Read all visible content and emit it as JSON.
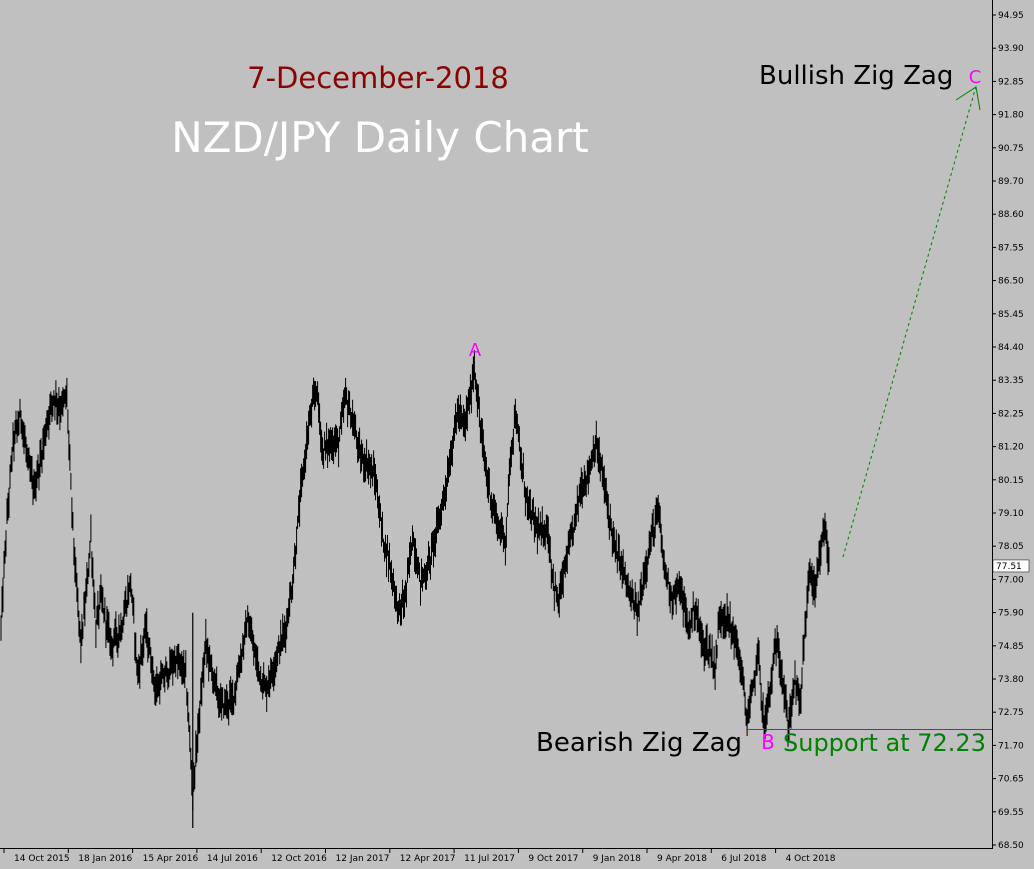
{
  "chart_data": {
    "type": "line",
    "style": "candlestick-like black price series on gray background",
    "instrument": "NZD/JPY",
    "date_text": "7-December-2018",
    "title": "NZD/JPY Daily Chart",
    "current_price": "77.51",
    "y_ticks": [
      "94.95",
      "93.90",
      "92.85",
      "91.80",
      "90.75",
      "89.70",
      "88.60",
      "87.55",
      "86.50",
      "85.45",
      "84.40",
      "83.35",
      "82.25",
      "81.20",
      "80.15",
      "79.10",
      "78.05",
      "77.00",
      "75.90",
      "74.85",
      "73.80",
      "72.75",
      "71.70",
      "70.65",
      "69.55",
      "68.50"
    ],
    "x_ticks": [
      "14 Oct 2015",
      "18 Jan 2016",
      "15 Apr 2016",
      "14 Jul 2016",
      "12 Oct 2016",
      "12 Jan 2017",
      "12 Apr 2017",
      "11 Jul 2017",
      "9 Oct 2017",
      "9 Jan 2018",
      "9 Apr 2018",
      "6 Jul 2018",
      "4 Oct 2018"
    ],
    "ylim": [
      68.5,
      95.3
    ],
    "price_path": [
      {
        "i": 0,
        "v": 75.5
      },
      {
        "i": 5,
        "v": 78.5
      },
      {
        "i": 12,
        "v": 81.5
      },
      {
        "i": 20,
        "v": 82.4
      },
      {
        "i": 27,
        "v": 80.8
      },
      {
        "i": 33,
        "v": 80.0
      },
      {
        "i": 40,
        "v": 81.0
      },
      {
        "i": 47,
        "v": 82.3
      },
      {
        "i": 53,
        "v": 83.0
      },
      {
        "i": 60,
        "v": 82.6
      },
      {
        "i": 66,
        "v": 83.0
      },
      {
        "i": 70,
        "v": 80.0
      },
      {
        "i": 75,
        "v": 77.0
      },
      {
        "i": 80,
        "v": 75.0
      },
      {
        "i": 85,
        "v": 76.5
      },
      {
        "i": 90,
        "v": 78.5
      },
      {
        "i": 95,
        "v": 75.5
      },
      {
        "i": 100,
        "v": 76.5
      },
      {
        "i": 110,
        "v": 75.0
      },
      {
        "i": 120,
        "v": 75.5
      },
      {
        "i": 130,
        "v": 77.0
      },
      {
        "i": 137,
        "v": 74.0
      },
      {
        "i": 145,
        "v": 75.5
      },
      {
        "i": 155,
        "v": 73.5
      },
      {
        "i": 165,
        "v": 74.0
      },
      {
        "i": 175,
        "v": 74.5
      },
      {
        "i": 185,
        "v": 74.0
      },
      {
        "i": 192,
        "v": 70.2
      },
      {
        "i": 198,
        "v": 72.5
      },
      {
        "i": 205,
        "v": 75.0
      },
      {
        "i": 212,
        "v": 74.0
      },
      {
        "i": 220,
        "v": 73.0
      },
      {
        "i": 232,
        "v": 73.2
      },
      {
        "i": 240,
        "v": 74.5
      },
      {
        "i": 247,
        "v": 75.8
      },
      {
        "i": 255,
        "v": 74.5
      },
      {
        "i": 265,
        "v": 73.5
      },
      {
        "i": 275,
        "v": 74.5
      },
      {
        "i": 285,
        "v": 75.5
      },
      {
        "i": 292,
        "v": 77.0
      },
      {
        "i": 300,
        "v": 79.8
      },
      {
        "i": 308,
        "v": 82.0
      },
      {
        "i": 316,
        "v": 83.3
      },
      {
        "i": 322,
        "v": 81.2
      },
      {
        "i": 330,
        "v": 81.5
      },
      {
        "i": 338,
        "v": 81.5
      },
      {
        "i": 345,
        "v": 83.0
      },
      {
        "i": 352,
        "v": 82.2
      },
      {
        "i": 360,
        "v": 81.0
      },
      {
        "i": 368,
        "v": 80.8
      },
      {
        "i": 375,
        "v": 80.3
      },
      {
        "i": 382,
        "v": 78.5
      },
      {
        "i": 390,
        "v": 77.5
      },
      {
        "i": 398,
        "v": 76.0
      },
      {
        "i": 405,
        "v": 76.5
      },
      {
        "i": 412,
        "v": 78.5
      },
      {
        "i": 420,
        "v": 77.0
      },
      {
        "i": 428,
        "v": 77.5
      },
      {
        "i": 435,
        "v": 78.5
      },
      {
        "i": 442,
        "v": 79.5
      },
      {
        "i": 450,
        "v": 81.0
      },
      {
        "i": 457,
        "v": 82.5
      },
      {
        "i": 464,
        "v": 82.0
      },
      {
        "i": 470,
        "v": 83.0
      },
      {
        "i": 474,
        "v": 84.0
      },
      {
        "i": 480,
        "v": 82.0
      },
      {
        "i": 486,
        "v": 80.5
      },
      {
        "i": 492,
        "v": 79.5
      },
      {
        "i": 498,
        "v": 78.8
      },
      {
        "i": 505,
        "v": 78.3
      },
      {
        "i": 510,
        "v": 81.0
      },
      {
        "i": 515,
        "v": 82.5
      },
      {
        "i": 520,
        "v": 81.0
      },
      {
        "i": 527,
        "v": 79.5
      },
      {
        "i": 533,
        "v": 79.0
      },
      {
        "i": 540,
        "v": 78.5
      },
      {
        "i": 547,
        "v": 78.8
      },
      {
        "i": 553,
        "v": 77.0
      },
      {
        "i": 558,
        "v": 76.3
      },
      {
        "i": 565,
        "v": 77.5
      },
      {
        "i": 572,
        "v": 78.5
      },
      {
        "i": 580,
        "v": 80.0
      },
      {
        "i": 588,
        "v": 80.5
      },
      {
        "i": 595,
        "v": 81.5
      },
      {
        "i": 602,
        "v": 80.5
      },
      {
        "i": 608,
        "v": 79.3
      },
      {
        "i": 615,
        "v": 78.0
      },
      {
        "i": 622,
        "v": 77.5
      },
      {
        "i": 630,
        "v": 76.5
      },
      {
        "i": 638,
        "v": 76.0
      },
      {
        "i": 645,
        "v": 77.5
      },
      {
        "i": 652,
        "v": 78.5
      },
      {
        "i": 658,
        "v": 79.3
      },
      {
        "i": 664,
        "v": 77.5
      },
      {
        "i": 672,
        "v": 76.5
      },
      {
        "i": 680,
        "v": 76.8
      },
      {
        "i": 688,
        "v": 75.5
      },
      {
        "i": 695,
        "v": 76.2
      },
      {
        "i": 702,
        "v": 75.0
      },
      {
        "i": 710,
        "v": 74.8
      },
      {
        "i": 715,
        "v": 74.2
      },
      {
        "i": 720,
        "v": 76.0
      },
      {
        "i": 727,
        "v": 75.8
      },
      {
        "i": 735,
        "v": 75.2
      },
      {
        "i": 742,
        "v": 74.0
      },
      {
        "i": 747,
        "v": 72.5
      },
      {
        "i": 753,
        "v": 73.5
      },
      {
        "i": 758,
        "v": 74.8
      },
      {
        "i": 764,
        "v": 72.3
      },
      {
        "i": 770,
        "v": 73.5
      },
      {
        "i": 777,
        "v": 75.2
      },
      {
        "i": 782,
        "v": 74.0
      },
      {
        "i": 788,
        "v": 72.3
      },
      {
        "i": 795,
        "v": 73.8
      },
      {
        "i": 800,
        "v": 73.0
      },
      {
        "i": 805,
        "v": 75.5
      },
      {
        "i": 810,
        "v": 77.5
      },
      {
        "i": 815,
        "v": 76.5
      },
      {
        "i": 820,
        "v": 77.8
      },
      {
        "i": 825,
        "v": 78.8
      },
      {
        "i": 829,
        "v": 77.5
      }
    ],
    "annotations": {
      "wave_a": "A",
      "wave_b": "B",
      "wave_c": "C",
      "bullish_label": "Bullish Zig Zag",
      "bearish_label": "Bearish Zig Zag",
      "support_label": "Support at 72.23",
      "support_level": 72.23,
      "projection_start": 77.8,
      "projection_end": 93.0
    },
    "colors": {
      "background": "#c0c0c0",
      "price": "#000000",
      "date_text": "#8b0000",
      "title": "#ffffff",
      "wave_label": "#ff00ff",
      "support": "#008000",
      "projection": "#008000"
    }
  }
}
